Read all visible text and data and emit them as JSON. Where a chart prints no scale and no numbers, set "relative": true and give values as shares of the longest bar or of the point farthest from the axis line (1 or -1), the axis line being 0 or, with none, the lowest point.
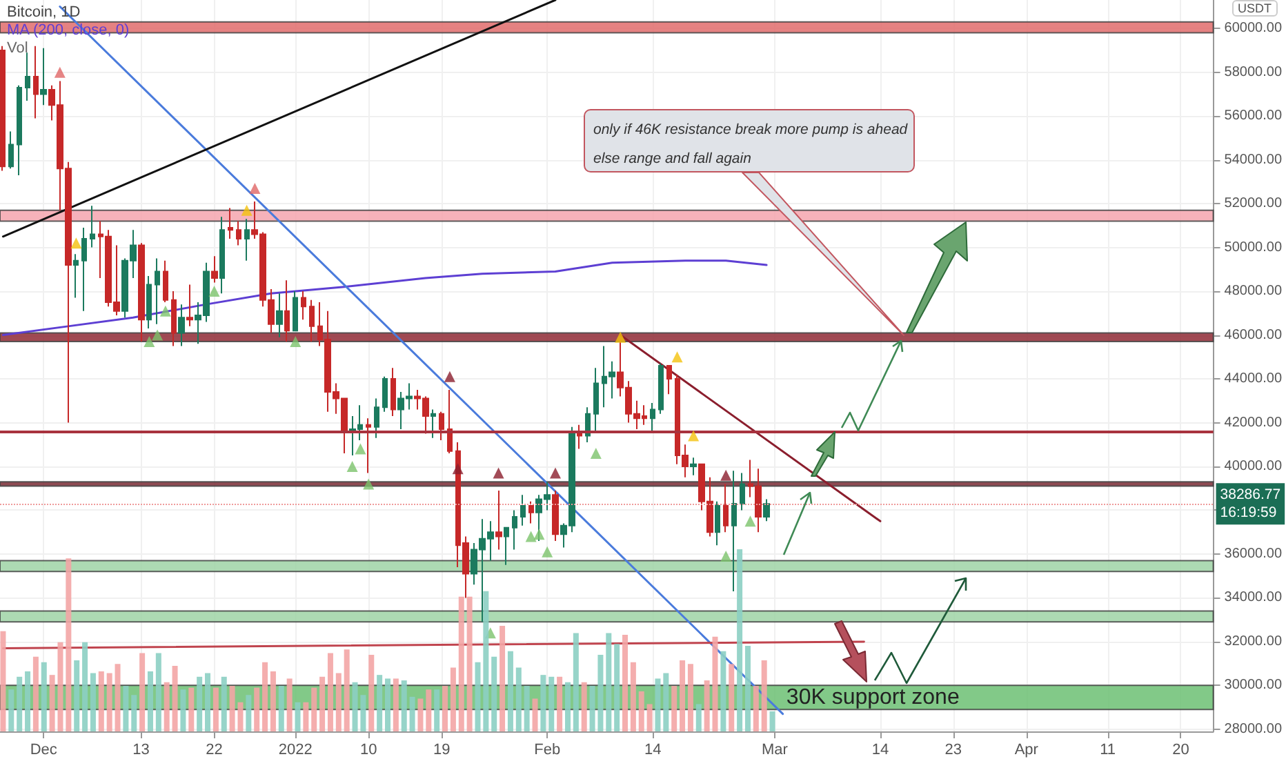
{
  "chart_data": [
    {
      "type": "candlestick",
      "title": "Bitcoin, 1D",
      "ylabel": "USDT",
      "x": [
        "2021-11-26",
        "2021-11-27",
        "2021-11-28",
        "2021-11-29",
        "2021-11-30",
        "2021-12-01",
        "2021-12-02",
        "2021-12-03",
        "2021-12-04",
        "2021-12-05",
        "2021-12-06",
        "2021-12-07",
        "2021-12-08",
        "2021-12-09",
        "2021-12-10",
        "2021-12-11",
        "2021-12-12",
        "2021-12-13",
        "2021-12-14",
        "2021-12-15",
        "2021-12-16",
        "2021-12-17",
        "2021-12-18",
        "2021-12-19",
        "2021-12-20",
        "2021-12-21",
        "2021-12-22",
        "2021-12-23",
        "2021-12-24",
        "2021-12-25",
        "2021-12-26",
        "2021-12-27",
        "2021-12-28",
        "2021-12-29",
        "2021-12-30",
        "2021-12-31",
        "2022-01-01",
        "2022-01-02",
        "2022-01-03",
        "2022-01-04",
        "2022-01-05",
        "2022-01-06",
        "2022-01-07",
        "2022-01-08",
        "2022-01-09",
        "2022-01-10",
        "2022-01-11",
        "2022-01-12",
        "2022-01-13",
        "2022-01-14",
        "2022-01-15",
        "2022-01-16",
        "2022-01-17",
        "2022-01-18",
        "2022-01-19",
        "2022-01-20",
        "2022-01-21",
        "2022-01-22",
        "2022-01-23",
        "2022-01-24",
        "2022-01-25",
        "2022-01-26",
        "2022-01-27",
        "2022-01-28",
        "2022-01-29",
        "2022-01-30",
        "2022-01-31",
        "2022-02-01",
        "2022-02-02",
        "2022-02-03",
        "2022-02-04",
        "2022-02-05",
        "2022-02-06",
        "2022-02-07",
        "2022-02-08",
        "2022-02-09",
        "2022-02-10",
        "2022-02-11",
        "2022-02-12",
        "2022-02-13",
        "2022-02-14",
        "2022-02-15",
        "2022-02-16",
        "2022-02-17",
        "2022-02-18",
        "2022-02-19",
        "2022-02-20",
        "2022-02-21",
        "2022-02-22",
        "2022-02-23",
        "2022-02-24",
        "2022-02-25",
        "2022-02-26",
        "2022-02-27",
        "2022-02-28"
      ],
      "ohlc": [
        [
          59000,
          59200,
          53500,
          53700
        ],
        [
          53700,
          55300,
          53600,
          54700
        ],
        [
          54700,
          57400,
          53300,
          57300
        ],
        [
          57300,
          58900,
          56700,
          57800
        ],
        [
          57800,
          59200,
          55900,
          57000
        ],
        [
          57000,
          59100,
          56500,
          57200
        ],
        [
          57200,
          57400,
          55800,
          56500
        ],
        [
          56500,
          57600,
          51700,
          53600
        ],
        [
          53600,
          53900,
          42000,
          49200
        ],
        [
          49200,
          49700,
          47700,
          49400
        ],
        [
          49400,
          50900,
          47100,
          50400
        ],
        [
          50400,
          51900,
          50000,
          50600
        ],
        [
          50600,
          51200,
          48600,
          50500
        ],
        [
          50500,
          50800,
          47300,
          47500
        ],
        [
          47500,
          50100,
          46900,
          47100
        ],
        [
          47100,
          49500,
          46800,
          49400
        ],
        [
          49400,
          50800,
          48600,
          50100
        ],
        [
          50100,
          50200,
          45700,
          46700
        ],
        [
          46700,
          48700,
          46300,
          48300
        ],
        [
          48300,
          49500,
          46500,
          48900
        ],
        [
          48900,
          49400,
          47500,
          47600
        ],
        [
          47600,
          48000,
          45500,
          46100
        ],
        [
          46100,
          47400,
          45500,
          46800
        ],
        [
          46800,
          48300,
          46400,
          46700
        ],
        [
          46700,
          47500,
          45600,
          46900
        ],
        [
          46900,
          49300,
          46600,
          48900
        ],
        [
          48900,
          49600,
          48400,
          48600
        ],
        [
          48600,
          51400,
          47900,
          50800
        ],
        [
          50900,
          51800,
          50400,
          50800
        ],
        [
          50800,
          51200,
          50100,
          50400
        ],
        [
          50400,
          51300,
          49400,
          50800
        ],
        [
          50800,
          52100,
          50400,
          50600
        ],
        [
          50600,
          50700,
          47300,
          47600
        ],
        [
          47600,
          48100,
          46100,
          46500
        ],
        [
          46500,
          47900,
          45900,
          47100
        ],
        [
          47100,
          48500,
          45700,
          46200
        ],
        [
          46200,
          48000,
          46200,
          47700
        ],
        [
          47700,
          48000,
          46700,
          47300
        ],
        [
          47300,
          47600,
          45700,
          46400
        ],
        [
          46400,
          47500,
          45500,
          45800
        ],
        [
          45800,
          47100,
          42500,
          43400
        ],
        [
          43400,
          43800,
          42400,
          43100
        ],
        [
          43100,
          43100,
          40600,
          41600
        ],
        [
          41600,
          42300,
          40500,
          41700
        ],
        [
          41700,
          42800,
          41200,
          41900
        ],
        [
          41900,
          42200,
          39700,
          41800
        ],
        [
          41800,
          43100,
          41300,
          42700
        ],
        [
          42700,
          44100,
          42500,
          44000
        ],
        [
          44000,
          44500,
          42300,
          42600
        ],
        [
          42600,
          43400,
          41700,
          43100
        ],
        [
          43100,
          43800,
          42600,
          43200
        ],
        [
          43200,
          43500,
          42600,
          43100
        ],
        [
          43100,
          43200,
          41500,
          42300
        ],
        [
          42300,
          42600,
          41300,
          42400
        ],
        [
          42400,
          42500,
          41200,
          41700
        ],
        [
          41700,
          43500,
          40600,
          40700
        ],
        [
          40700,
          41100,
          35400,
          36400
        ],
        [
          36500,
          36800,
          34000,
          35100
        ],
        [
          35100,
          36500,
          34600,
          36200
        ],
        [
          36200,
          37600,
          32900,
          36700
        ],
        [
          36700,
          37500,
          35700,
          37000
        ],
        [
          37000,
          38900,
          36200,
          36800
        ],
        [
          36800,
          37200,
          35500,
          37200
        ],
        [
          37200,
          38000,
          36200,
          37700
        ],
        [
          37700,
          38700,
          37300,
          38200
        ],
        [
          38200,
          38400,
          37400,
          37900
        ],
        [
          37900,
          38700,
          36600,
          38500
        ],
        [
          38500,
          39300,
          38000,
          38700
        ],
        [
          38700,
          38900,
          36600,
          36900
        ],
        [
          36900,
          37400,
          36300,
          37300
        ],
        [
          37300,
          41800,
          37000,
          41600
        ],
        [
          41600,
          41900,
          40800,
          41400
        ],
        [
          41400,
          42700,
          41100,
          42400
        ],
        [
          42400,
          44500,
          41600,
          43800
        ],
        [
          43800,
          45500,
          42700,
          44100
        ],
        [
          44100,
          44800,
          43100,
          44300
        ],
        [
          44300,
          45800,
          43200,
          43600
        ],
        [
          43600,
          43900,
          42000,
          42400
        ],
        [
          42400,
          43000,
          41700,
          42200
        ],
        [
          42300,
          42800,
          41900,
          42200
        ],
        [
          42200,
          42900,
          41600,
          42600
        ],
        [
          42600,
          44700,
          42400,
          44600
        ],
        [
          44600,
          44600,
          43300,
          44000
        ],
        [
          44000,
          44200,
          40100,
          40500
        ],
        [
          40500,
          41000,
          39500,
          40000
        ],
        [
          40000,
          40400,
          39600,
          40100
        ],
        [
          40100,
          40100,
          38000,
          38400
        ],
        [
          38400,
          39500,
          36800,
          37000
        ],
        [
          37000,
          38400,
          36400,
          38200
        ],
        [
          38200,
          39200,
          37000,
          37300
        ],
        [
          37300,
          39800,
          34300,
          38300
        ],
        [
          38300,
          39700,
          38000,
          39200
        ],
        [
          39200,
          40300,
          38600,
          39100
        ],
        [
          39100,
          39900,
          37000,
          37700
        ],
        [
          37700,
          38500,
          37500,
          38286.77
        ]
      ],
      "colors": [
        "#c62828",
        "#1b7a5e",
        "#1b7a5e",
        "#1b7a5e",
        "#c62828",
        "#1b7a5e",
        "#c62828",
        "#c62828",
        "#c62828",
        "#1b7a5e",
        "#1b7a5e",
        "#1b7a5e",
        "#c62828",
        "#c62828",
        "#c62828",
        "#1b7a5e",
        "#1b7a5e",
        "#c62828",
        "#1b7a5e",
        "#1b7a5e",
        "#c62828",
        "#c62828",
        "#1b7a5e",
        "#c62828",
        "#1b7a5e",
        "#1b7a5e",
        "#c62828",
        "#1b7a5e",
        "#c62828",
        "#c62828",
        "#1b7a5e",
        "#c62828",
        "#c62828",
        "#c62828",
        "#1b7a5e",
        "#c62828",
        "#1b7a5e",
        "#c62828",
        "#c62828",
        "#c62828",
        "#c62828",
        "#c62828",
        "#c62828",
        "#1b7a5e",
        "#1b7a5e",
        "#c62828",
        "#1b7a5e",
        "#1b7a5e",
        "#c62828",
        "#1b7a5e",
        "#1b7a5e",
        "#c62828",
        "#c62828",
        "#1b7a5e",
        "#c62828",
        "#c62828",
        "#c62828",
        "#c62828",
        "#1b7a5e",
        "#1b7a5e",
        "#1b7a5e",
        "#c62828",
        "#1b7a5e",
        "#1b7a5e",
        "#1b7a5e",
        "#c62828",
        "#1b7a5e",
        "#1b7a5e",
        "#c62828",
        "#1b7a5e",
        "#1b7a5e",
        "#c62828",
        "#1b7a5e",
        "#1b7a5e",
        "#1b7a5e",
        "#1b7a5e",
        "#c62828",
        "#c62828",
        "#c62828",
        "#c62828",
        "#1b7a5e",
        "#1b7a5e",
        "#c62828",
        "#c62828",
        "#c62828",
        "#1b7a5e",
        "#c62828",
        "#c62828",
        "#1b7a5e",
        "#c62828",
        "#1b7a5e",
        "#1b7a5e",
        "#c62828",
        "#c62828",
        "#1b7a5e"
      ],
      "xlim": [
        "2021-11-25T15:00",
        "2022-04-24"
      ],
      "xticks": [
        {
          "value": "2021-12-01",
          "label": "Dec"
        },
        {
          "value": "2021-12-13",
          "label": "13"
        },
        {
          "value": "2021-12-22",
          "label": "22"
        },
        {
          "value": "2022-01-01",
          "label": "2022"
        },
        {
          "value": "2022-01-10",
          "label": "10"
        },
        {
          "value": "2022-01-19",
          "label": "19"
        },
        {
          "value": "2022-02-01",
          "label": "Feb"
        },
        {
          "value": "2022-02-14",
          "label": "14"
        },
        {
          "value": "2022-03-01",
          "label": "Mar"
        },
        {
          "value": "2022-03-14",
          "label": "14"
        },
        {
          "value": "2022-03-23",
          "label": "23"
        },
        {
          "value": "2022-04-01",
          "label": "Apr"
        },
        {
          "value": "2022-04-11",
          "label": "11"
        },
        {
          "value": "2022-04-20",
          "label": "20"
        }
      ],
      "ylim": [
        27900,
        61300
      ],
      "yticks": [
        {
          "value": 28000,
          "label": "28000.00"
        },
        {
          "value": 30000,
          "label": "30000.00"
        },
        {
          "value": 32000,
          "label": "32000.00"
        },
        {
          "value": 34000,
          "label": "34000.00"
        },
        {
          "value": 36000,
          "label": "36000.00"
        },
        {
          "value": 38000,
          "label": null
        },
        {
          "value": 40000,
          "label": "40000.00"
        },
        {
          "value": 42000,
          "label": "42000.00"
        },
        {
          "value": 44000,
          "label": "44000.00"
        },
        {
          "value": 46000,
          "label": "46000.00"
        },
        {
          "value": 48000,
          "label": "48000.00"
        },
        {
          "value": 50000,
          "label": "50000.00"
        },
        {
          "value": 52000,
          "label": "52000.00"
        },
        {
          "value": 54000,
          "label": "54000.00"
        },
        {
          "value": 56000,
          "label": "56000.00"
        },
        {
          "value": 58000,
          "label": "58000.00"
        },
        {
          "value": 60000,
          "label": "60000.00"
        }
      ],
      "grid": true,
      "series": [
        {
          "type": "line",
          "name": "MA (200, close, 0)",
          "color": "#5d3fd3",
          "marker": "none",
          "x": [
            "2021-11-26",
            "2021-12-04",
            "2021-12-12",
            "2021-12-21",
            "2021-12-29",
            "2022-01-07",
            "2022-01-17",
            "2022-01-24",
            "2022-02-02",
            "2022-02-09",
            "2022-02-18",
            "2022-02-23",
            "2022-02-28"
          ],
          "values": [
            46000,
            46400,
            46800,
            47400,
            47900,
            48200,
            48600,
            48800,
            48900,
            49300,
            49400,
            49400,
            49200
          ]
        },
        {
          "type": "line",
          "color": "#4a7bdc",
          "marker": "none",
          "x": [
            "2021-12-03",
            "2022-03-02"
          ],
          "values": [
            61000,
            28700
          ]
        },
        {
          "type": "line",
          "color": "#111111",
          "marker": "none",
          "x": [
            "2021-11-26",
            "2022-02-02"
          ],
          "values": [
            50500,
            61300
          ]
        },
        {
          "type": "line",
          "color": "#8b1e2d",
          "marker": "none",
          "x": [
            "2022-02-10",
            "2022-03-14"
          ],
          "values": [
            46000,
            37500
          ]
        },
        {
          "type": "line",
          "color": "#c0444e",
          "marker": "none",
          "x": [
            "2021-11-26",
            "2022-03-12"
          ],
          "values": [
            31700,
            32000
          ]
        },
        {
          "type": "scatter",
          "color": "#e06666",
          "marker": "triangle",
          "x": [
            "2021-12-03",
            "2021-12-27"
          ],
          "values": [
            58000,
            52700
          ]
        },
        {
          "type": "scatter",
          "color": "#8b1e2d",
          "marker": "triangle",
          "x": [
            "2022-01-20",
            "2022-01-21",
            "2022-01-26",
            "2022-02-02",
            "2022-02-23"
          ],
          "values": [
            44100,
            39900,
            39700,
            39700,
            39600
          ]
        },
        {
          "type": "scatter",
          "color": "#f4c20d",
          "marker": "triangle",
          "x": [
            "2021-12-05",
            "2021-12-26",
            "2022-02-10",
            "2022-02-17",
            "2022-02-19"
          ],
          "values": [
            50200,
            51700,
            45900,
            45000,
            41400
          ]
        },
        {
          "type": "scatter",
          "color": "#7cc36b",
          "marker": "triangle",
          "x": [
            "2021-12-14",
            "2021-12-15",
            "2021-12-16",
            "2021-12-22",
            "2022-01-01",
            "2022-01-08",
            "2022-01-09",
            "2022-01-10",
            "2022-01-25",
            "2022-01-30",
            "2022-01-31",
            "2022-02-01",
            "2022-02-07",
            "2022-02-23",
            "2022-02-26"
          ],
          "values": [
            45700,
            46000,
            47100,
            48000,
            45700,
            40000,
            40800,
            39200,
            32400,
            36800,
            36900,
            36100,
            40600,
            35900,
            37500
          ]
        }
      ],
      "bands": [
        {
          "axis": "y",
          "from": 59800,
          "to": 60300,
          "color": "#e06c6c"
        },
        {
          "axis": "y",
          "from": 51200,
          "to": 51700,
          "color": "#f4a5ae"
        },
        {
          "axis": "y",
          "from": 45700,
          "to": 46100,
          "color": "#8f2a35"
        },
        {
          "axis": "y",
          "from": 39100,
          "to": 39300,
          "color": "#7a2a34"
        },
        {
          "axis": "y",
          "from": 35200,
          "to": 35700,
          "color": "#9fd3a6"
        },
        {
          "axis": "y",
          "from": 32900,
          "to": 33400,
          "color": "#9fd3a6"
        },
        {
          "axis": "y",
          "from": 28900,
          "to": 30000,
          "color": "#6cbf73",
          "label": "30K support zone"
        }
      ],
      "ref_lines": [
        {
          "axis": "y",
          "value": 41600,
          "color": "#a8323e",
          "line_style": "solid"
        },
        {
          "axis": "y",
          "value": 38286.77,
          "label": "38286.77",
          "color": "#ef9a9a",
          "line_style": "dotted"
        }
      ],
      "annotations": [
        "only if 46K resistance break more pump is ahead",
        "else range and fall again",
        "16:19:59"
      ]
    },
    {
      "type": "bar",
      "relative": true,
      "tick_labels": false,
      "xlim": [
        "2021-11-25T15:00",
        "2022-04-24"
      ],
      "x": [
        "2021-11-26",
        "2021-11-27",
        "2021-11-28",
        "2021-11-29",
        "2021-11-30",
        "2021-12-01",
        "2021-12-02",
        "2021-12-03",
        "2021-12-04",
        "2021-12-05",
        "2021-12-06",
        "2021-12-07",
        "2021-12-08",
        "2021-12-09",
        "2021-12-10",
        "2021-12-11",
        "2021-12-12",
        "2021-12-13",
        "2021-12-14",
        "2021-12-15",
        "2021-12-16",
        "2021-12-17",
        "2021-12-18",
        "2021-12-19",
        "2021-12-20",
        "2021-12-21",
        "2021-12-22",
        "2021-12-23",
        "2021-12-24",
        "2021-12-25",
        "2021-12-26",
        "2021-12-27",
        "2021-12-28",
        "2021-12-29",
        "2021-12-30",
        "2021-12-31",
        "2022-01-01",
        "2022-01-02",
        "2022-01-03",
        "2022-01-04",
        "2022-01-05",
        "2022-01-06",
        "2022-01-07",
        "2022-01-08",
        "2022-01-09",
        "2022-01-10",
        "2022-01-11",
        "2022-01-12",
        "2022-01-13",
        "2022-01-14",
        "2022-01-15",
        "2022-01-16",
        "2022-01-17",
        "2022-01-18",
        "2022-01-19",
        "2022-01-20",
        "2022-01-21",
        "2022-01-22",
        "2022-01-23",
        "2022-01-24",
        "2022-01-25",
        "2022-01-26",
        "2022-01-27",
        "2022-01-28",
        "2022-01-29",
        "2022-01-30",
        "2022-01-31",
        "2022-02-01",
        "2022-02-02",
        "2022-02-03",
        "2022-02-04",
        "2022-02-05",
        "2022-02-06",
        "2022-02-07",
        "2022-02-08",
        "2022-02-09",
        "2022-02-10",
        "2022-02-11",
        "2022-02-12",
        "2022-02-13",
        "2022-02-14",
        "2022-02-15",
        "2022-02-16",
        "2022-02-17",
        "2022-02-18",
        "2022-02-19",
        "2022-02-20",
        "2022-02-21",
        "2022-02-22",
        "2022-02-23",
        "2022-02-24",
        "2022-02-25",
        "2022-02-26",
        "2022-02-27",
        "2022-02-28"
      ],
      "series": [
        {
          "name": "Vol",
          "values": [
            0.55,
            0.23,
            0.3,
            0.33,
            0.41,
            0.38,
            0.31,
            0.49,
            0.95,
            0.39,
            0.49,
            0.32,
            0.33,
            0.32,
            0.37,
            0.25,
            0.2,
            0.43,
            0.33,
            0.43,
            0.27,
            0.36,
            0.23,
            0.24,
            0.3,
            0.32,
            0.24,
            0.3,
            0.25,
            0.16,
            0.2,
            0.24,
            0.38,
            0.33,
            0.25,
            0.29,
            0.16,
            0.16,
            0.24,
            0.3,
            0.43,
            0.32,
            0.45,
            0.27,
            0.2,
            0.42,
            0.31,
            0.29,
            0.29,
            0.28,
            0.19,
            0.18,
            0.23,
            0.23,
            0.25,
            0.35,
            0.74,
            0.74,
            0.38,
            0.77,
            0.41,
            0.58,
            0.44,
            0.35,
            0.25,
            0.18,
            0.31,
            0.3,
            0.3,
            0.27,
            0.54,
            0.27,
            0.25,
            0.42,
            0.54,
            0.48,
            0.53,
            0.38,
            0.22,
            0.15,
            0.29,
            0.32,
            0.25,
            0.39,
            0.37,
            0.15,
            0.28,
            0.52,
            0.44,
            0.37,
            1,
            0.47,
            0.25,
            0.39,
            0.11
          ],
          "colors": [
            "#f3a5a5",
            "#8ccfc3",
            "#8ccfc3",
            "#8ccfc3",
            "#f3a5a5",
            "#8ccfc3",
            "#f3a5a5",
            "#f3a5a5",
            "#f3a5a5",
            "#8ccfc3",
            "#8ccfc3",
            "#8ccfc3",
            "#f3a5a5",
            "#f3a5a5",
            "#f3a5a5",
            "#8ccfc3",
            "#8ccfc3",
            "#f3a5a5",
            "#8ccfc3",
            "#8ccfc3",
            "#f3a5a5",
            "#f3a5a5",
            "#8ccfc3",
            "#f3a5a5",
            "#8ccfc3",
            "#8ccfc3",
            "#f3a5a5",
            "#8ccfc3",
            "#f3a5a5",
            "#f3a5a5",
            "#8ccfc3",
            "#f3a5a5",
            "#f3a5a5",
            "#f3a5a5",
            "#8ccfc3",
            "#f3a5a5",
            "#8ccfc3",
            "#f3a5a5",
            "#f3a5a5",
            "#f3a5a5",
            "#f3a5a5",
            "#f3a5a5",
            "#f3a5a5",
            "#8ccfc3",
            "#8ccfc3",
            "#f3a5a5",
            "#8ccfc3",
            "#8ccfc3",
            "#f3a5a5",
            "#8ccfc3",
            "#8ccfc3",
            "#f3a5a5",
            "#f3a5a5",
            "#8ccfc3",
            "#f3a5a5",
            "#f3a5a5",
            "#f3a5a5",
            "#f3a5a5",
            "#8ccfc3",
            "#8ccfc3",
            "#8ccfc3",
            "#f3a5a5",
            "#8ccfc3",
            "#8ccfc3",
            "#8ccfc3",
            "#f3a5a5",
            "#8ccfc3",
            "#8ccfc3",
            "#f3a5a5",
            "#8ccfc3",
            "#8ccfc3",
            "#f3a5a5",
            "#8ccfc3",
            "#8ccfc3",
            "#8ccfc3",
            "#8ccfc3",
            "#f3a5a5",
            "#f3a5a5",
            "#f3a5a5",
            "#f3a5a5",
            "#8ccfc3",
            "#8ccfc3",
            "#f3a5a5",
            "#f3a5a5",
            "#f3a5a5",
            "#8ccfc3",
            "#f3a5a5",
            "#f3a5a5",
            "#8ccfc3",
            "#f3a5a5",
            "#8ccfc3",
            "#8ccfc3",
            "#f3a5a5",
            "#f3a5a5",
            "#8ccfc3"
          ]
        }
      ]
    }
  ]
}
